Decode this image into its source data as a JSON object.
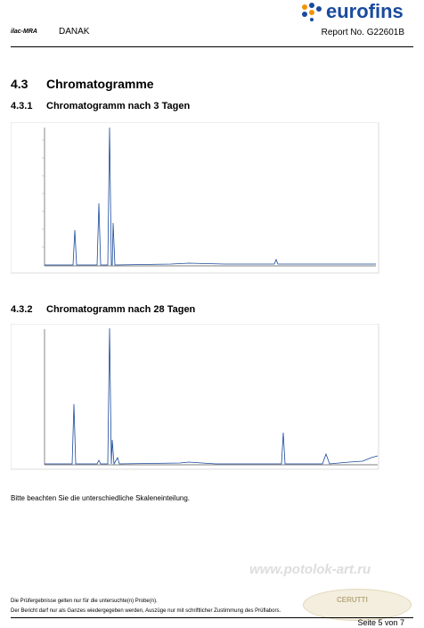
{
  "header": {
    "logo_left_1": "ilac-MRA",
    "logo_left_2": "DANAK",
    "logo_right": "eurofins",
    "report_no": "Report No. G22601B"
  },
  "section": {
    "number": "4.3",
    "title": "Chromatogramme"
  },
  "subsections": [
    {
      "number": "4.3.1",
      "title": "Chromatogramm nach 3 Tagen"
    },
    {
      "number": "4.3.2",
      "title": "Chromatogramm nach 28 Tagen"
    }
  ],
  "note": "Bitte beachten Sie die unterschiedliche Skaleneinteilung.",
  "watermark": "www.potolok-art.ru",
  "stamp": "CERUTTI",
  "footer": {
    "line1": "Die Prüfergebnisse gelten nur für die untersuchte(n) Probe(n).",
    "line2": "Der Bericht darf nur als Ganzes wiedergegeben werden, Auszüge nur mit schriftlicher Zustimmung des Prüflabors.",
    "page": "Seite 5 von 7"
  }
}
